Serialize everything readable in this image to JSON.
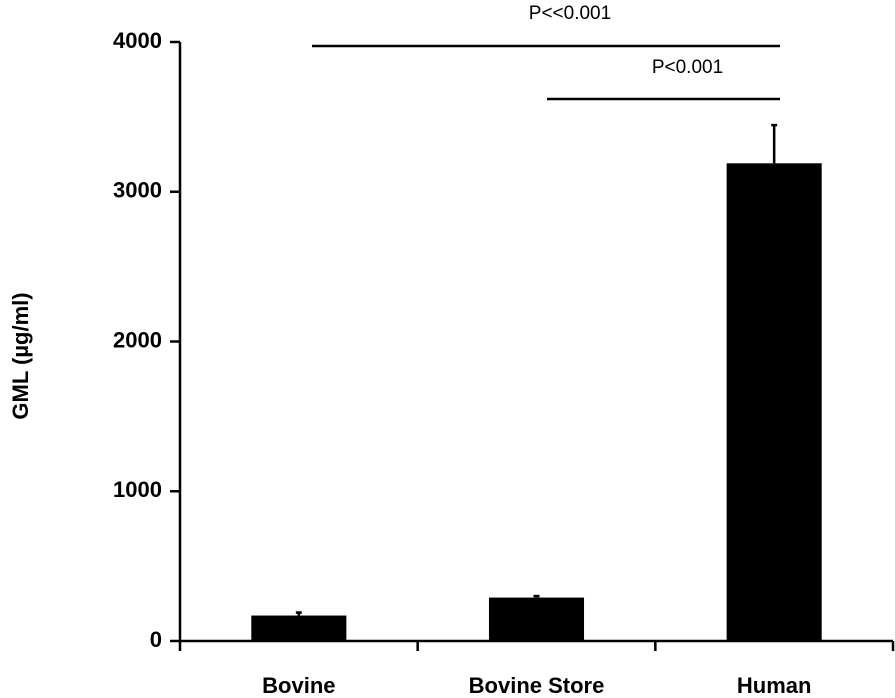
{
  "chart_data": {
    "type": "bar",
    "y_label": "GML (µg/ml)",
    "categories": [
      "Bovine",
      "Bovine Store",
      "Human"
    ],
    "values": [
      170,
      290,
      3190
    ],
    "errors": [
      20,
      10,
      255
    ],
    "color": "#000000",
    "ylim": [
      0,
      4000
    ],
    "yticks": [
      0,
      1000,
      2000,
      3000,
      4000
    ],
    "annotations": [
      "P<<0.001",
      "P<0.001"
    ]
  }
}
